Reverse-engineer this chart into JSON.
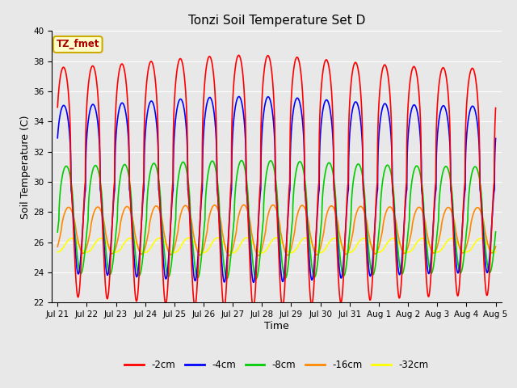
{
  "title": "Tonzi Soil Temperature Set D",
  "xlabel": "Time",
  "ylabel": "Soil Temperature (C)",
  "ylim": [
    22,
    40
  ],
  "annotation": "TZ_fmet",
  "annotation_bg": "#ffffcc",
  "annotation_border": "#ccaa00",
  "series": {
    "-2cm": {
      "color": "#ff0000",
      "lw": 1.2
    },
    "-4cm": {
      "color": "#0000ff",
      "lw": 1.2
    },
    "-8cm": {
      "color": "#00cc00",
      "lw": 1.2
    },
    "-16cm": {
      "color": "#ff8800",
      "lw": 1.2
    },
    "-32cm": {
      "color": "#ffff00",
      "lw": 1.2
    }
  },
  "xtick_labels": [
    "Jul 21",
    "Jul 22",
    "Jul 23",
    "Jul 24",
    "Jul 25",
    "Jul 26",
    "Jul 27",
    "Jul 28",
    "Jul 29",
    "Jul 30",
    "Jul 31",
    "Aug 1",
    "Aug 2",
    "Aug 3",
    "Aug 4",
    "Aug 5"
  ],
  "grid_color": "#ffffff",
  "plot_bg": "#e8e8e8",
  "fig_bg": "#e8e8e8"
}
